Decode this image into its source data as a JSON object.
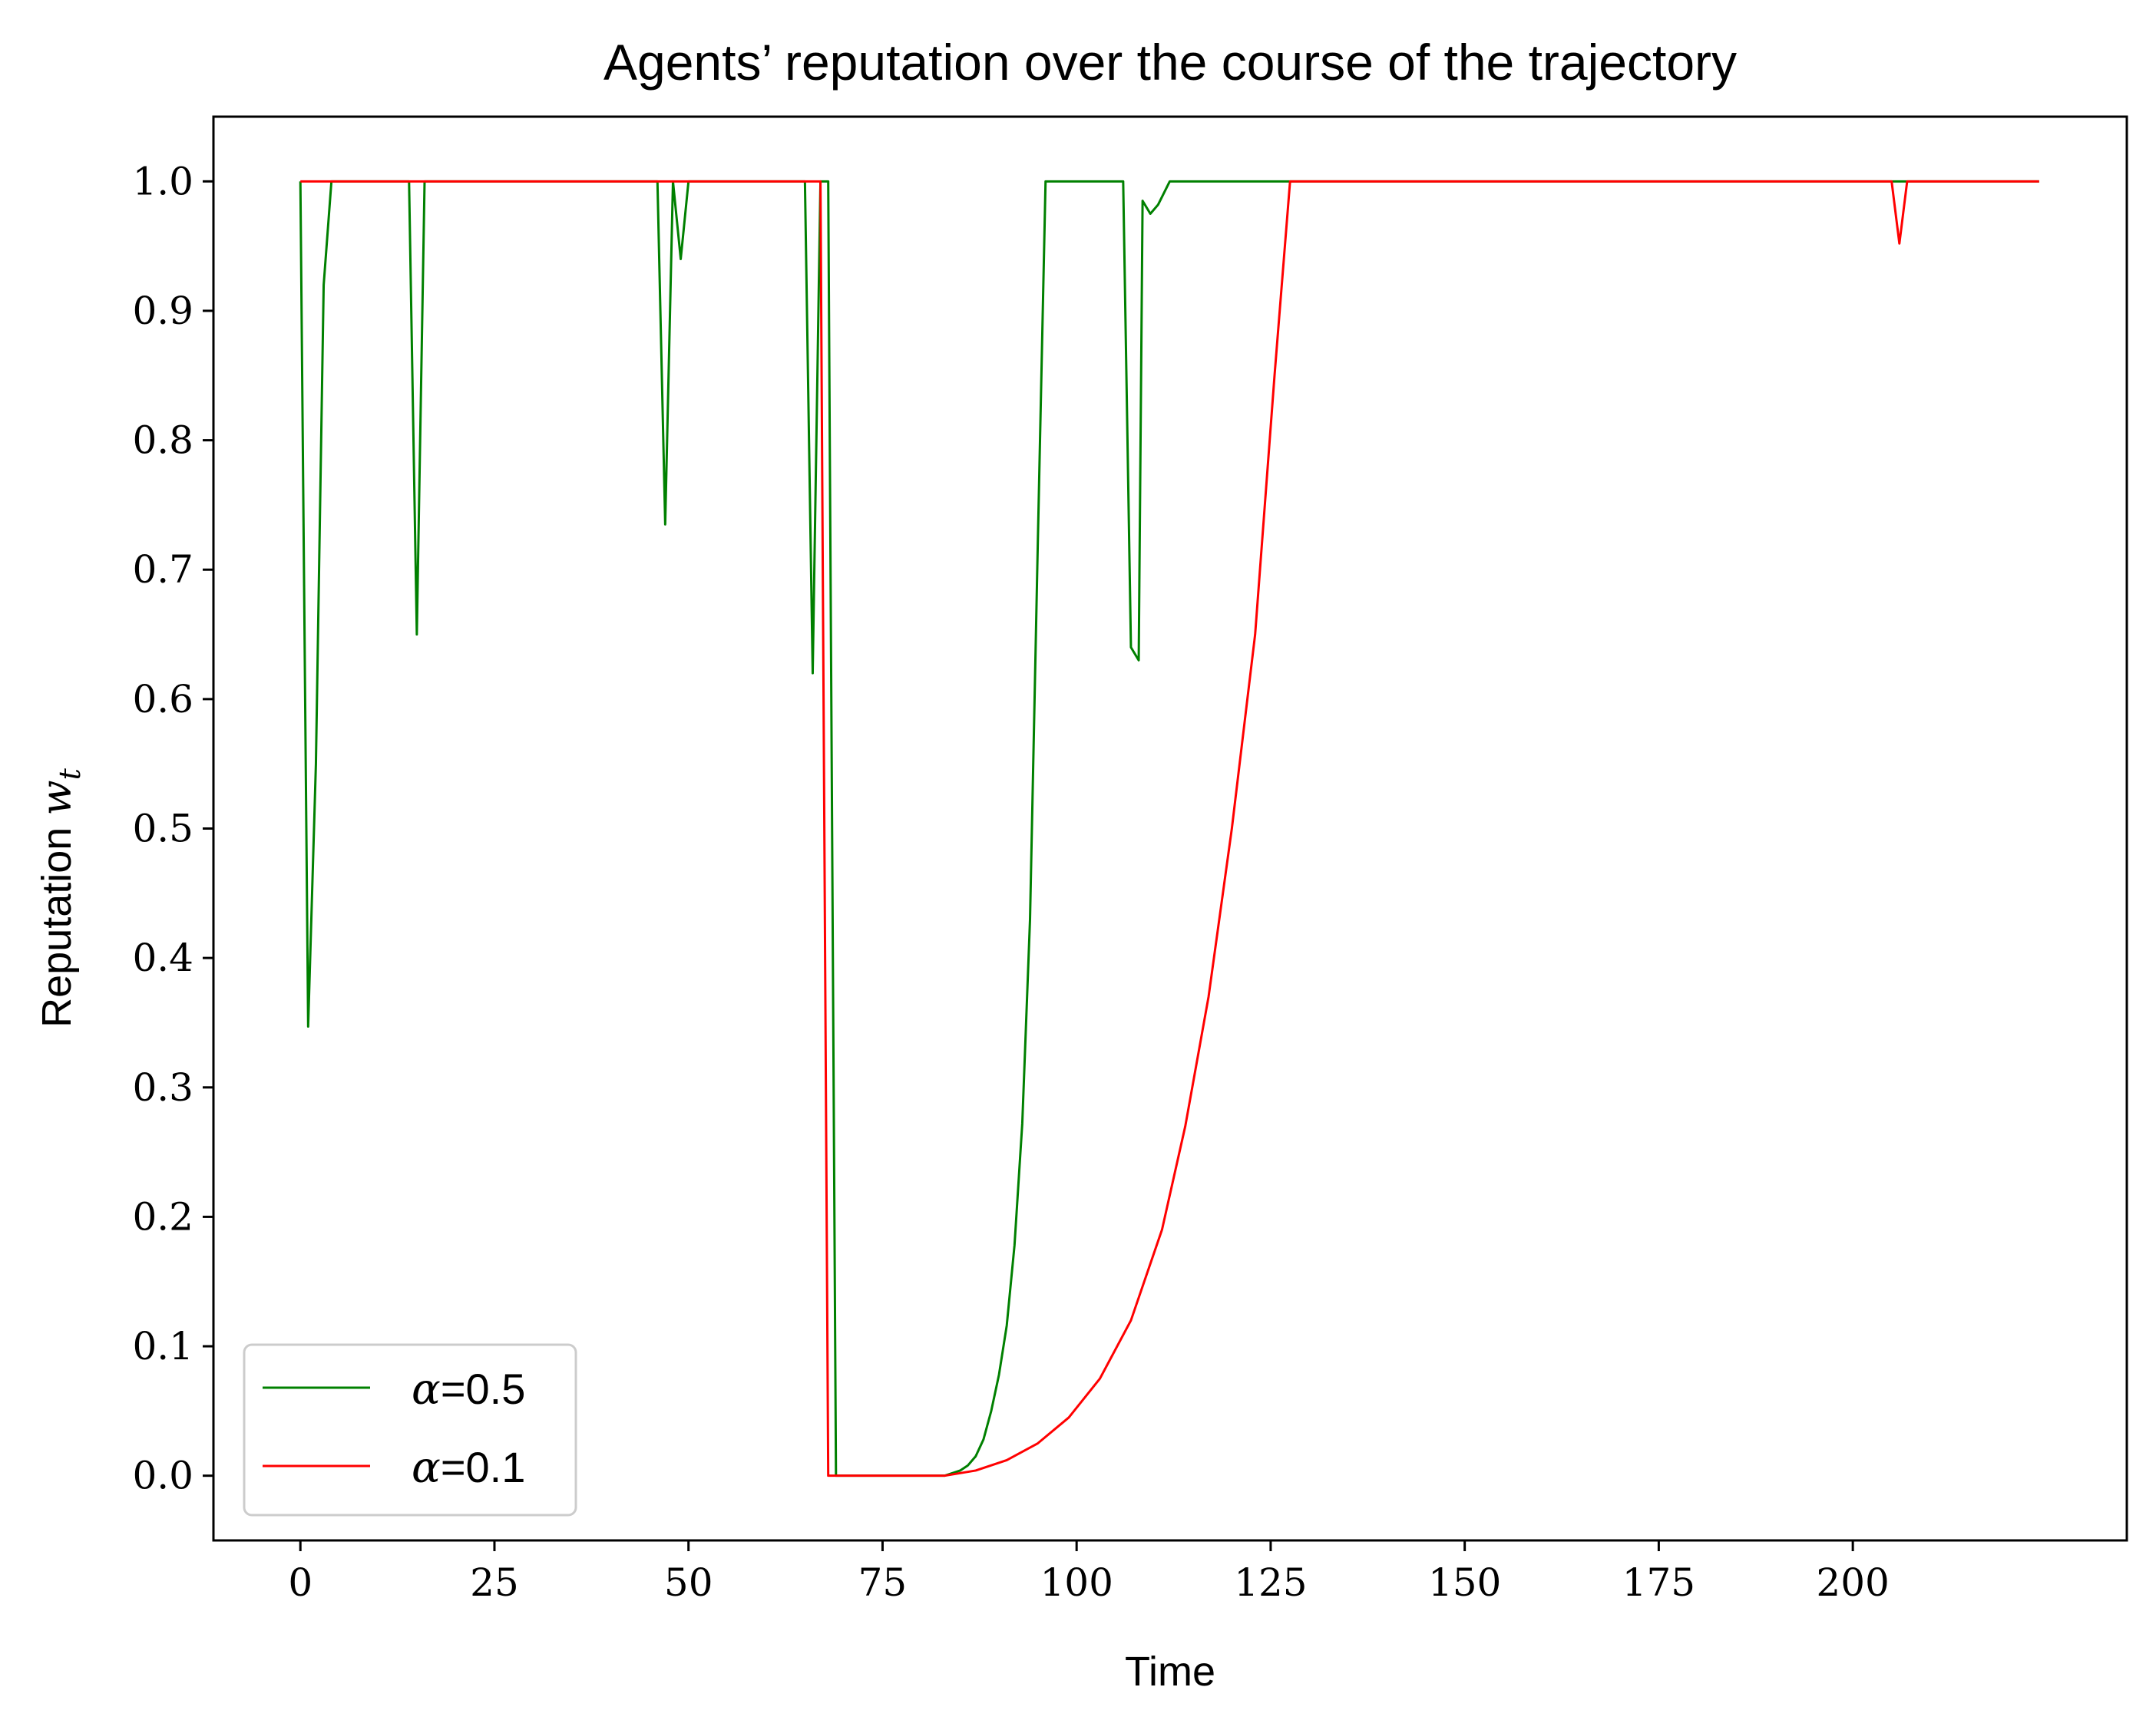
{
  "chart_data": {
    "type": "line",
    "title": "Agents’ reputation over the course of the trajectory",
    "xlabel": "Time",
    "ylabel_text": "Reputation ",
    "ylabel_symbol": "w",
    "ylabel_subscript": "t",
    "xlim": [
      -11.2,
      235.3
    ],
    "ylim": [
      -0.05,
      1.05
    ],
    "xticks": [
      0,
      25,
      50,
      75,
      100,
      125,
      150,
      175,
      200
    ],
    "xtick_labels": [
      "0",
      "25",
      "50",
      "75",
      "100",
      "125",
      "150",
      "175",
      "200"
    ],
    "yticks": [
      0.0,
      0.1,
      0.2,
      0.3,
      0.4,
      0.5,
      0.6,
      0.7,
      0.8,
      0.9,
      1.0
    ],
    "ytick_labels": [
      "0.0",
      "0.1",
      "0.2",
      "0.3",
      "0.4",
      "0.5",
      "0.6",
      "0.7",
      "0.8",
      "0.9",
      "1.0"
    ],
    "grid": false,
    "legend_position": "lower-left",
    "series": [
      {
        "name_symbol": "α",
        "name_value": "=0.5",
        "color": "#008000",
        "points": [
          [
            0,
            1.0
          ],
          [
            1,
            0.347
          ],
          [
            2,
            0.55
          ],
          [
            3,
            0.92
          ],
          [
            4,
            1.0
          ],
          [
            14,
            1.0
          ],
          [
            15,
            0.65
          ],
          [
            16,
            1.0
          ],
          [
            46,
            1.0
          ],
          [
            47,
            0.735
          ],
          [
            48,
            1.0
          ],
          [
            49,
            0.94
          ],
          [
            50,
            1.0
          ],
          [
            65,
            1.0
          ],
          [
            66,
            0.62
          ],
          [
            67,
            1.0
          ],
          [
            68,
            1.0
          ],
          [
            69,
            0.0
          ],
          [
            83,
            0.0
          ],
          [
            84,
            0.002
          ],
          [
            85,
            0.004
          ],
          [
            86,
            0.008
          ],
          [
            87,
            0.015
          ],
          [
            88,
            0.028
          ],
          [
            89,
            0.05
          ],
          [
            90,
            0.078
          ],
          [
            91,
            0.116
          ],
          [
            92,
            0.178
          ],
          [
            93,
            0.272
          ],
          [
            94,
            0.43
          ],
          [
            95,
            0.72
          ],
          [
            96,
            1.0
          ],
          [
            106,
            1.0
          ],
          [
            107,
            0.64
          ],
          [
            108,
            0.63
          ],
          [
            108.5,
            0.985
          ],
          [
            109.5,
            0.975
          ],
          [
            110.5,
            0.982
          ],
          [
            112,
            1.0
          ],
          [
            224,
            1.0
          ]
        ]
      },
      {
        "name_symbol": "α",
        "name_value": "=0.1",
        "color": "#ff0000",
        "points": [
          [
            0,
            1.0
          ],
          [
            67,
            1.0
          ],
          [
            68,
            0.0
          ],
          [
            83,
            0.0
          ],
          [
            87,
            0.004
          ],
          [
            91,
            0.012
          ],
          [
            95,
            0.025
          ],
          [
            99,
            0.045
          ],
          [
            103,
            0.075
          ],
          [
            107,
            0.12
          ],
          [
            111,
            0.19
          ],
          [
            114,
            0.27
          ],
          [
            117,
            0.37
          ],
          [
            120,
            0.5
          ],
          [
            123,
            0.65
          ],
          [
            125.5,
            0.85
          ],
          [
            127.5,
            1.0
          ],
          [
            205,
            1.0
          ],
          [
            206,
            0.952
          ],
          [
            207,
            1.0
          ],
          [
            224,
            1.0
          ]
        ]
      }
    ]
  }
}
